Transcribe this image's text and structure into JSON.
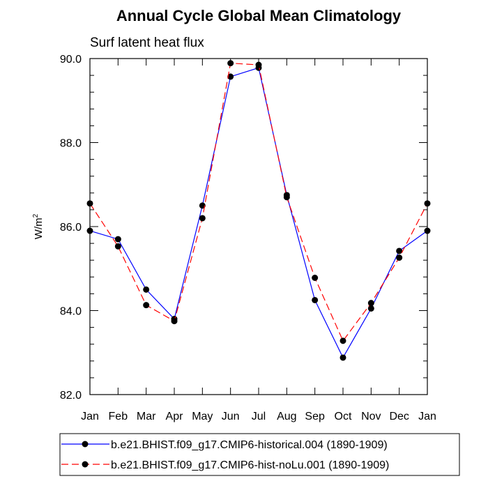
{
  "chart_data": {
    "type": "line",
    "title": "Annual Cycle Global Mean Climatology",
    "subtitle": "Surf latent heat flux",
    "ylabel": "W/m",
    "ylabel_sup": "2",
    "xlabel": "",
    "categories": [
      "Jan",
      "Feb",
      "Mar",
      "Apr",
      "May",
      "Jun",
      "Jul",
      "Aug",
      "Sep",
      "Oct",
      "Nov",
      "Dec",
      "Jan"
    ],
    "ylim": [
      82.0,
      90.0
    ],
    "yticks": [
      82.0,
      84.0,
      86.0,
      88.0,
      90.0
    ],
    "ytick_labels": [
      "82.0",
      "84.0",
      "86.0",
      "88.0",
      "90.0"
    ],
    "series": [
      {
        "name": "b.e21.BHIST.f09_g17.CMIP6-historical.004 (1890-1909)",
        "color": "#0000ff",
        "dash": "solid",
        "values": [
          85.9,
          85.7,
          84.5,
          83.8,
          86.5,
          89.57,
          89.78,
          86.75,
          84.25,
          82.88,
          84.05,
          85.42,
          85.9
        ]
      },
      {
        "name": "b.e21.BHIST.f09_g17.CMIP6-hist-noLu.001 (1890-1909)",
        "color": "#ff0000",
        "dash": "dashed",
        "values": [
          86.55,
          85.53,
          84.13,
          83.75,
          86.2,
          89.89,
          89.85,
          86.7,
          84.78,
          83.28,
          84.18,
          85.26,
          86.55
        ]
      }
    ]
  }
}
